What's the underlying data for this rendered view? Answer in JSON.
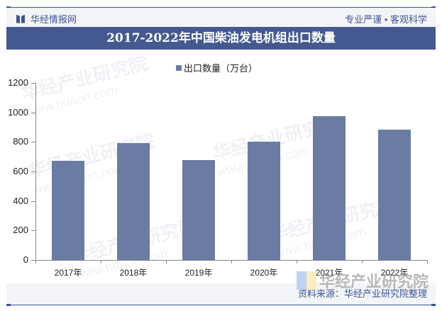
{
  "header": {
    "brand": "华经情报网",
    "slogan": "专业严谨 • 客观科学"
  },
  "title": "2017-2022年中国柴油发电机组出口数量",
  "legend": {
    "label": "出口数量（万台）",
    "color": "#6a7ca3"
  },
  "footer": {
    "source": "资料来源：华经产业研究院整理",
    "logo_text": "华经产业研究院"
  },
  "watermark": {
    "cn": "华经产业研究院",
    "url": "www.huaon.com"
  },
  "colors": {
    "bar": "#6a7ca3",
    "titlebar": "#44598f",
    "accent": "#3b5590"
  },
  "chart_data": {
    "type": "bar",
    "title": "2017-2022年中国柴油发电机组出口数量",
    "categories": [
      "2017年",
      "2018年",
      "2019年",
      "2020年",
      "2021年",
      "2022年"
    ],
    "series": [
      {
        "name": "出口数量（万台）",
        "values": [
          672,
          792,
          677,
          802,
          975,
          883
        ]
      }
    ],
    "xlabel": "",
    "ylabel": "",
    "ylim": [
      0,
      1200
    ],
    "yticks": [
      0,
      200,
      400,
      600,
      800,
      1000,
      1200
    ],
    "grid": false,
    "legend_position": "top"
  }
}
